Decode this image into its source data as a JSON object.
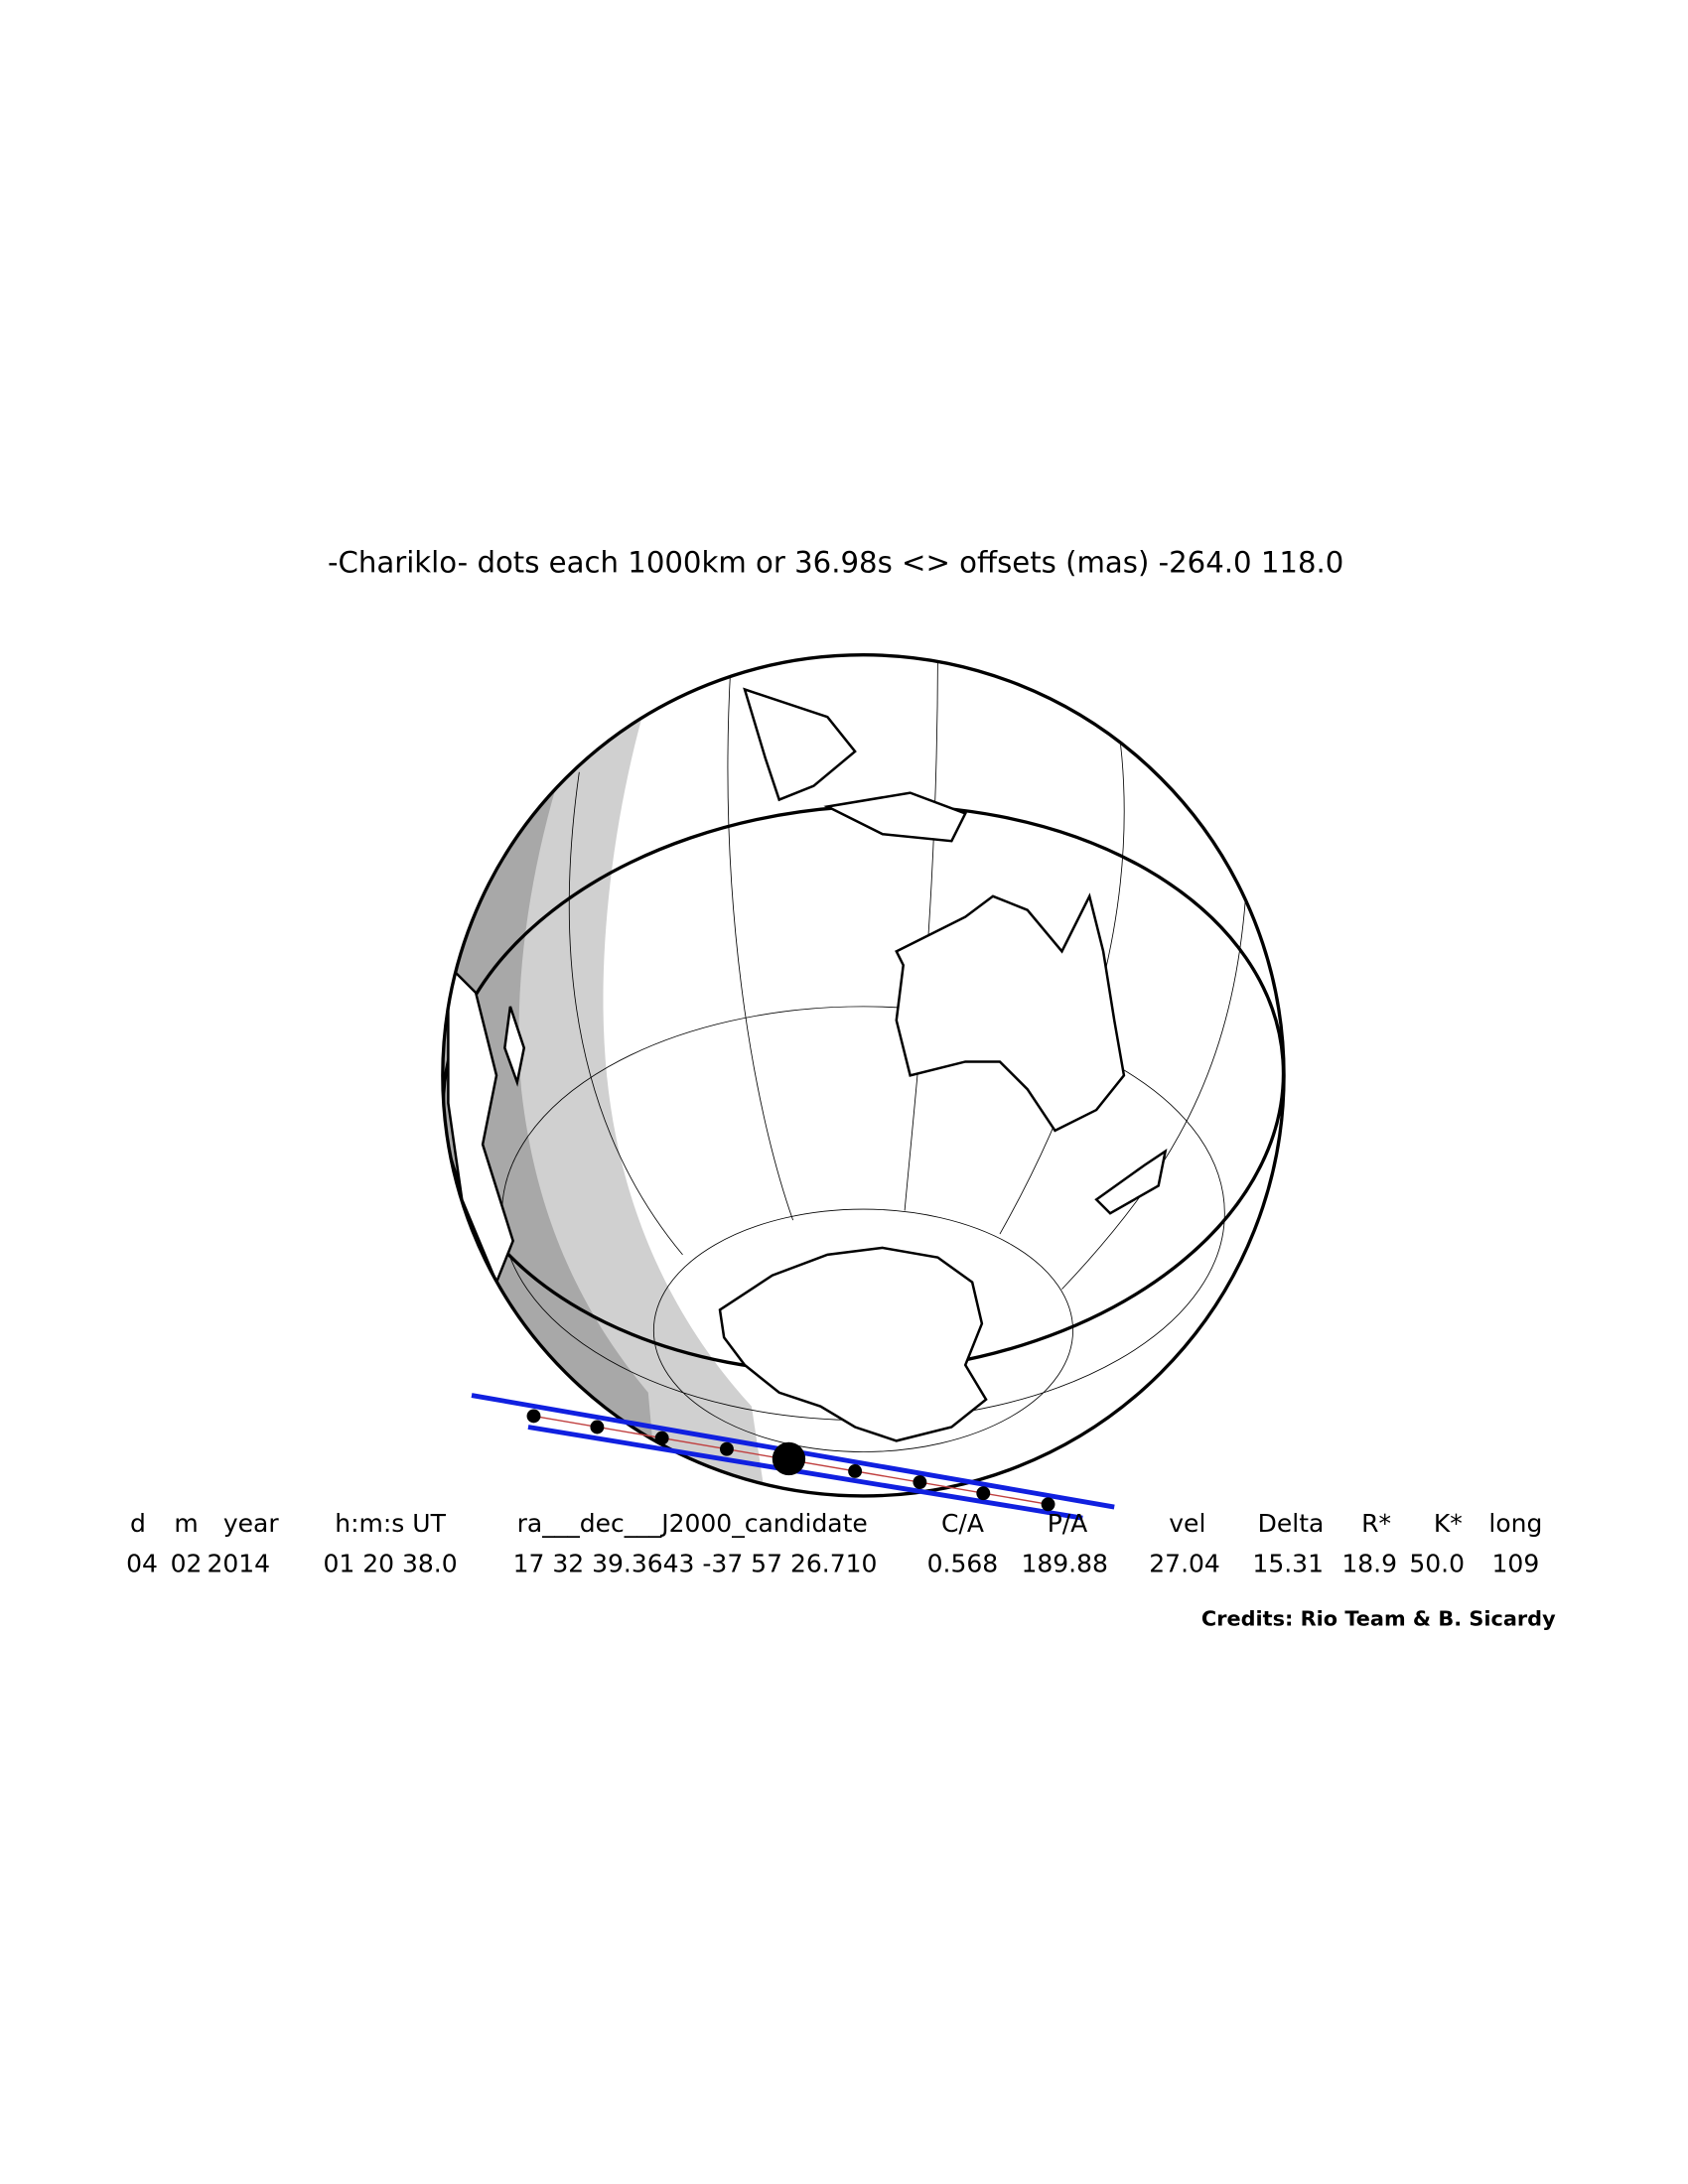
{
  "title": "-Chariklo- dots each 1000km or 36.98s <> offsets (mas) -264.0  118.0",
  "table": {
    "headers": [
      "d",
      "m",
      "year",
      "h:m:s UT",
      "ra___dec___J2000_candidate",
      "C/A",
      "P/A",
      "vel",
      "Delta",
      "R*",
      "K*",
      "long"
    ],
    "values": [
      "04",
      "02",
      "2014",
      "01 20 38.0",
      "17 32 39.3643 -37 57 26.710",
      "0.568",
      "189.88",
      "27.04",
      "15.31",
      "18.9",
      "50.0",
      "109"
    ]
  },
  "credits": "Credits: Rio Team & B. Sicardy"
}
